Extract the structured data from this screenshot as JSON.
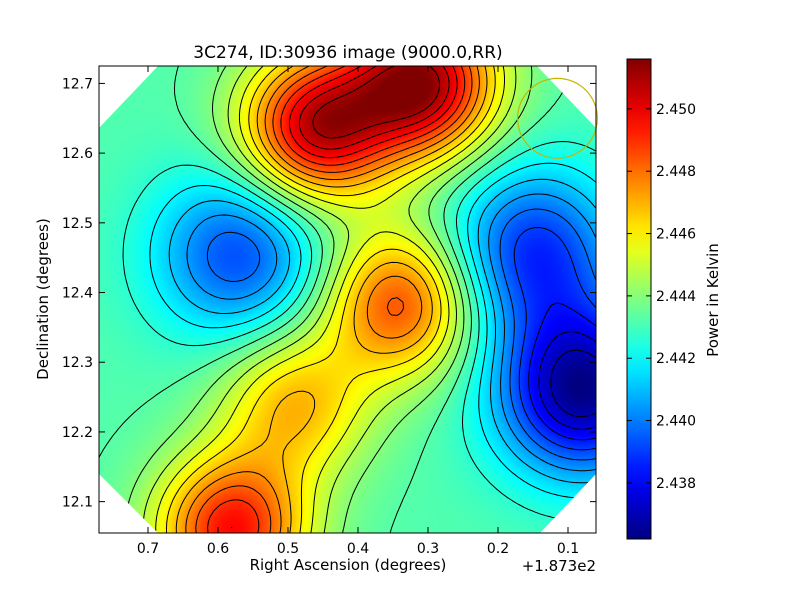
{
  "chart_data": {
    "type": "heatmap",
    "title": "3C274, ID:30936 image (9000.0,RR)",
    "xlabel": "Right Ascension (degrees)",
    "ylabel": "Declination (degrees)",
    "x_offset_label": "+1.873e2",
    "x_ticks": [
      "0.7",
      "0.6",
      "0.5",
      "0.4",
      "0.3",
      "0.2",
      "0.1"
    ],
    "y_ticks": [
      "12.1",
      "12.2",
      "12.3",
      "12.4",
      "12.5",
      "12.6",
      "12.7"
    ],
    "xlim": [
      0.77,
      0.06
    ],
    "ylim": [
      12.055,
      12.725
    ],
    "colorbar": {
      "label": "Power in Kelvin",
      "ticks": [
        "2.438",
        "2.440",
        "2.442",
        "2.444",
        "2.446",
        "2.448",
        "2.450"
      ],
      "range": [
        2.4362,
        2.4516
      ],
      "colormap": "jet"
    },
    "grid": false,
    "features": [
      {
        "kind": "maximum",
        "ra": 0.31,
        "dec": 12.7,
        "value": 2.4512
      },
      {
        "kind": "maximum",
        "ra": 0.46,
        "dec": 12.635,
        "value": 2.4505
      },
      {
        "kind": "maximum",
        "ra": 0.34,
        "dec": 12.385,
        "value": 2.4485
      },
      {
        "kind": "maximum",
        "ra": 0.49,
        "dec": 12.24,
        "value": 2.4468
      },
      {
        "kind": "maximum",
        "ra": 0.58,
        "dec": 12.06,
        "value": 2.4495
      },
      {
        "kind": "minimum",
        "ra": 0.57,
        "dec": 12.455,
        "value": 2.4392
      },
      {
        "kind": "minimum",
        "ra": 0.15,
        "dec": 12.46,
        "value": 2.4388
      },
      {
        "kind": "minimum",
        "ra": 0.08,
        "dec": 12.26,
        "value": 2.4364
      }
    ],
    "beam": {
      "ra": 0.115,
      "dec": 12.65,
      "radius": 0.057
    }
  },
  "colors": {
    "contour": "#000000",
    "beam": "#c8b400",
    "background": "#ffffff"
  }
}
